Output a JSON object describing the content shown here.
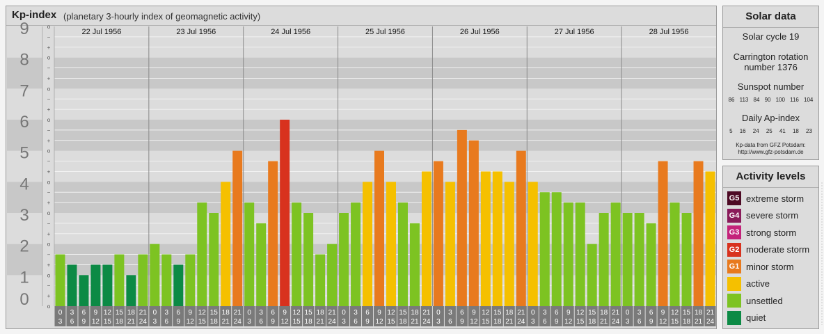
{
  "header": {
    "title": "Kp-index",
    "subtitle": "(planetary 3-hourly index of geomagnetic activity)"
  },
  "chart_data": {
    "type": "bar",
    "title": "Kp-index",
    "subtitle": "(planetary 3-hourly index of geomagnetic activity)",
    "days": [
      "22 Jul 1956",
      "23 Jul 1956",
      "24 Jul 1956",
      "25 Jul 1956",
      "26 Jul 1956",
      "27 Jul 1956",
      "28 Jul 1956"
    ],
    "interval_labels": [
      [
        "0",
        "3"
      ],
      [
        "3",
        "6"
      ],
      [
        "6",
        "9"
      ],
      [
        "9",
        "12"
      ],
      [
        "12",
        "15"
      ],
      [
        "15",
        "18"
      ],
      [
        "18",
        "21"
      ],
      [
        "21",
        "24"
      ]
    ],
    "ylim": [
      0,
      9
    ],
    "y_ticks": [
      "0",
      "1",
      "2",
      "3",
      "4",
      "5",
      "6",
      "7",
      "8",
      "9"
    ],
    "sub_marks": [
      "o",
      "+",
      "−"
    ],
    "values": [
      1.667,
      1.333,
      1.0,
      1.333,
      1.333,
      1.667,
      1.0,
      1.667,
      2.0,
      1.667,
      1.333,
      1.667,
      3.333,
      3.0,
      4.0,
      5.0,
      3.333,
      2.667,
      4.667,
      6.0,
      3.333,
      3.0,
      1.667,
      2.0,
      3.0,
      3.333,
      4.0,
      5.0,
      4.0,
      3.333,
      2.667,
      4.333,
      4.667,
      4.0,
      5.667,
      5.333,
      4.333,
      4.333,
      4.0,
      5.0,
      4.0,
      3.667,
      3.667,
      3.333,
      3.333,
      2.0,
      3.0,
      3.333,
      3.0,
      3.0,
      2.667,
      4.667,
      3.333,
      3.0,
      4.667,
      4.333
    ],
    "grid": true
  },
  "solar": {
    "title": "Solar data",
    "cycle": "Solar cycle 19",
    "carrington_line1": "Carrington rotation",
    "carrington_line2": "number 1376",
    "sunspot_title": "Sunspot number",
    "sunspot_values": [
      "86",
      "113",
      "84",
      "90",
      "100",
      "116",
      "104"
    ],
    "ap_title": "Daily Ap-index",
    "ap_values": [
      "5",
      "16",
      "24",
      "25",
      "41",
      "18",
      "23"
    ],
    "source_line1": "Kp-data from GFZ Potsdam:",
    "source_line2": "http://www.gfz-potsdam.de"
  },
  "levels": {
    "title": "Activity levels",
    "items": [
      {
        "code": "G5",
        "label": "extreme storm",
        "color": "#4d0a24"
      },
      {
        "code": "G4",
        "label": "severe storm",
        "color": "#8a1b5a"
      },
      {
        "code": "G3",
        "label": "strong storm",
        "color": "#c4237a"
      },
      {
        "code": "G2",
        "label": "moderate storm",
        "color": "#d8321e"
      },
      {
        "code": "G1",
        "label": "minor storm",
        "color": "#e87a1e"
      },
      {
        "code": "",
        "label": "active",
        "color": "#f5c000"
      },
      {
        "code": "",
        "label": "unsettled",
        "color": "#7dc322"
      },
      {
        "code": "",
        "label": "quiet",
        "color": "#0c8a45"
      }
    ]
  }
}
